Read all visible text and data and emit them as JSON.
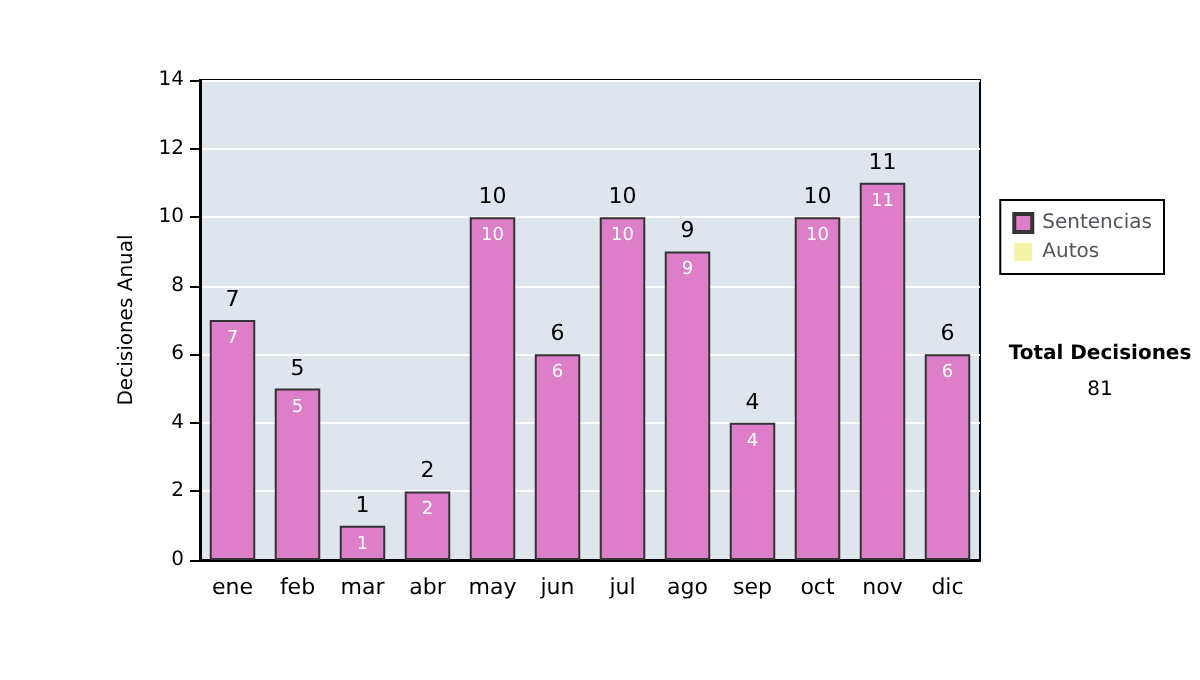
{
  "chart_data": {
    "type": "bar",
    "ylabel": "Decisiones Anual",
    "categories": [
      "ene",
      "feb",
      "mar",
      "abr",
      "may",
      "jun",
      "jul",
      "ago",
      "sep",
      "oct",
      "nov",
      "dic"
    ],
    "series": [
      {
        "name": "Sentencias",
        "color": "#dc7ec8",
        "values": [
          7,
          5,
          1,
          2,
          10,
          6,
          10,
          9,
          4,
          10,
          11,
          6
        ],
        "value_labels": [
          "7",
          "5",
          "1",
          "2",
          "10",
          "6",
          "10",
          "9",
          "4",
          "10",
          "11",
          "6"
        ]
      },
      {
        "name": "Autos",
        "color": "#f2f2a8",
        "values": [
          0,
          0,
          0,
          0,
          0,
          0,
          0,
          0,
          0,
          0,
          0,
          0
        ]
      }
    ],
    "stacked": true,
    "totals": [
      "7",
      "5",
      "1",
      "2",
      "10",
      "6",
      "10",
      "9",
      "4",
      "10",
      "11",
      "6"
    ],
    "ylim": [
      0,
      14
    ],
    "yticks": [
      0,
      2,
      4,
      6,
      8,
      10,
      12,
      14
    ],
    "grid": "y",
    "legend": "right",
    "annotations": [
      "Total Decisiones",
      "81"
    ]
  }
}
